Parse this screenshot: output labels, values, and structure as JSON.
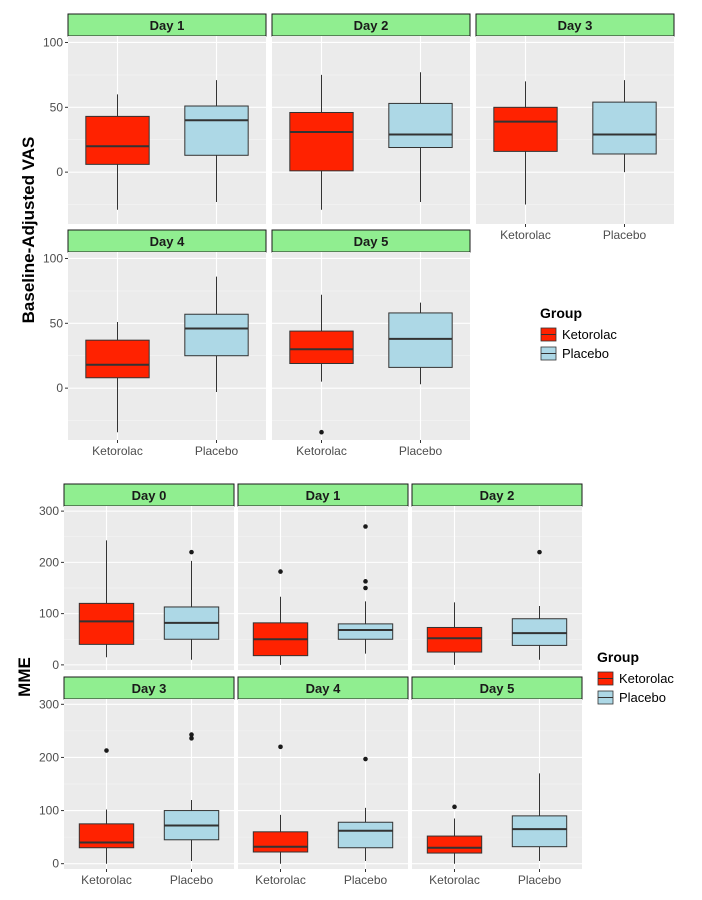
{
  "colors": {
    "Ketorolac": "#FF2200",
    "Placebo": "#ADD8E6",
    "strip": "#90EE90",
    "panel": "#EBEBEB"
  },
  "legend": {
    "title": "Group",
    "items": [
      "Ketorolac",
      "Placebo"
    ]
  },
  "chart_data": [
    {
      "type": "boxplot",
      "title": "",
      "ylabel": "Baseline-Adjusted VAS",
      "xlabel": "",
      "categories": [
        "Ketorolac",
        "Placebo"
      ],
      "yticks": [
        0,
        50,
        100
      ],
      "ylim": [
        -40,
        105
      ],
      "facets": [
        {
          "label": "Day 1",
          "boxes": [
            {
              "group": "Ketorolac",
              "min": -29,
              "q1": 6,
              "median": 20,
              "q3": 43,
              "max": 60,
              "outliers": []
            },
            {
              "group": "Placebo",
              "min": -23,
              "q1": 13,
              "median": 40,
              "q3": 51,
              "max": 71,
              "outliers": []
            }
          ]
        },
        {
          "label": "Day 2",
          "boxes": [
            {
              "group": "Ketorolac",
              "min": -29,
              "q1": 1,
              "median": 31,
              "q3": 46,
              "max": 75,
              "outliers": []
            },
            {
              "group": "Placebo",
              "min": -23,
              "q1": 19,
              "median": 29,
              "q3": 53,
              "max": 77,
              "outliers": []
            }
          ]
        },
        {
          "label": "Day 3",
          "boxes": [
            {
              "group": "Ketorolac",
              "min": -25,
              "q1": 16,
              "median": 39,
              "q3": 50,
              "max": 70,
              "outliers": []
            },
            {
              "group": "Placebo",
              "min": 0,
              "q1": 14,
              "median": 29,
              "q3": 54,
              "max": 71,
              "outliers": []
            }
          ]
        },
        {
          "label": "Day 4",
          "boxes": [
            {
              "group": "Ketorolac",
              "min": -34,
              "q1": 8,
              "median": 18,
              "q3": 37,
              "max": 51,
              "outliers": []
            },
            {
              "group": "Placebo",
              "min": -3,
              "q1": 25,
              "median": 46,
              "q3": 57,
              "max": 86,
              "outliers": []
            }
          ]
        },
        {
          "label": "Day 5",
          "boxes": [
            {
              "group": "Ketorolac",
              "min": 5,
              "q1": 19,
              "median": 30,
              "q3": 44,
              "max": 72,
              "outliers": [
                -34
              ]
            },
            {
              "group": "Placebo",
              "min": 3,
              "q1": 16,
              "median": 38,
              "q3": 58,
              "max": 66,
              "outliers": []
            }
          ]
        }
      ]
    },
    {
      "type": "boxplot",
      "title": "",
      "ylabel": "MME",
      "xlabel": "",
      "categories": [
        "Ketorolac",
        "Placebo"
      ],
      "yticks": [
        0,
        100,
        200,
        300
      ],
      "ylim": [
        -10,
        310
      ],
      "facets": [
        {
          "label": "Day 0",
          "boxes": [
            {
              "group": "Ketorolac",
              "min": 15,
              "q1": 40,
              "median": 85,
              "q3": 120,
              "max": 243,
              "outliers": []
            },
            {
              "group": "Placebo",
              "min": 10,
              "q1": 50,
              "median": 82,
              "q3": 113,
              "max": 203,
              "outliers": [
                220
              ]
            }
          ]
        },
        {
          "label": "Day 1",
          "boxes": [
            {
              "group": "Ketorolac",
              "min": 0,
              "q1": 18,
              "median": 50,
              "q3": 82,
              "max": 133,
              "outliers": [
                182
              ]
            },
            {
              "group": "Placebo",
              "min": 22,
              "q1": 50,
              "median": 68,
              "q3": 80,
              "max": 124,
              "outliers": [
                270,
                163,
                150
              ]
            }
          ]
        },
        {
          "label": "Day 2",
          "boxes": [
            {
              "group": "Ketorolac",
              "min": 0,
              "q1": 25,
              "median": 52,
              "q3": 73,
              "max": 122,
              "outliers": []
            },
            {
              "group": "Placebo",
              "min": 10,
              "q1": 38,
              "median": 62,
              "q3": 90,
              "max": 115,
              "outliers": [
                220
              ]
            }
          ]
        },
        {
          "label": "Day 3",
          "boxes": [
            {
              "group": "Ketorolac",
              "min": 0,
              "q1": 30,
              "median": 40,
              "q3": 75,
              "max": 102,
              "outliers": [
                213
              ]
            },
            {
              "group": "Placebo",
              "min": 5,
              "q1": 45,
              "median": 72,
              "q3": 100,
              "max": 120,
              "outliers": [
                243,
                236
              ]
            }
          ]
        },
        {
          "label": "Day 4",
          "boxes": [
            {
              "group": "Ketorolac",
              "min": 0,
              "q1": 22,
              "median": 32,
              "q3": 60,
              "max": 92,
              "outliers": [
                220
              ]
            },
            {
              "group": "Placebo",
              "min": 5,
              "q1": 30,
              "median": 62,
              "q3": 78,
              "max": 105,
              "outliers": [
                197
              ]
            }
          ]
        },
        {
          "label": "Day 5",
          "boxes": [
            {
              "group": "Ketorolac",
              "min": 0,
              "q1": 20,
              "median": 30,
              "q3": 52,
              "max": 85,
              "outliers": [
                107
              ]
            },
            {
              "group": "Placebo",
              "min": 5,
              "q1": 32,
              "median": 65,
              "q3": 90,
              "max": 170,
              "outliers": []
            }
          ]
        }
      ]
    }
  ]
}
